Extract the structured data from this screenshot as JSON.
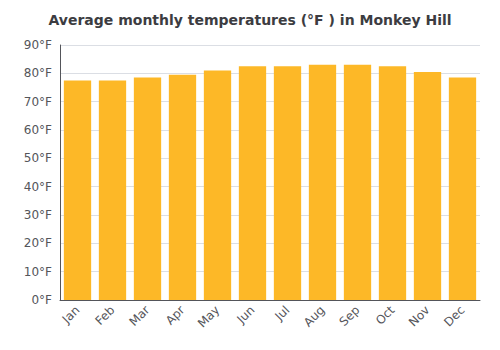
{
  "chart_data": {
    "type": "bar",
    "title": "Average monthly temperatures (°F ) in Monkey Hill",
    "categories": [
      "Jan",
      "Feb",
      "Mar",
      "Apr",
      "May",
      "Jun",
      "Jul",
      "Aug",
      "Sep",
      "Oct",
      "Nov",
      "Dec"
    ],
    "values": [
      77.5,
      77.5,
      78.5,
      79.5,
      81.0,
      82.5,
      82.5,
      83.0,
      83.0,
      82.5,
      80.5,
      78.5
    ],
    "color": "#FDB827",
    "ylim": [
      0,
      90
    ],
    "yticks": [
      {
        "value": 0,
        "label": "0°F"
      },
      {
        "value": 10,
        "label": "10°F"
      },
      {
        "value": 20,
        "label": "20°F"
      },
      {
        "value": 30,
        "label": "30°F"
      },
      {
        "value": 40,
        "label": "40°F"
      },
      {
        "value": 50,
        "label": "50°F"
      },
      {
        "value": 60,
        "label": "60°F"
      },
      {
        "value": 70,
        "label": "70°F"
      },
      {
        "value": 80,
        "label": "80°F"
      },
      {
        "value": 90,
        "label": "90°F"
      }
    ],
    "grid": true
  }
}
